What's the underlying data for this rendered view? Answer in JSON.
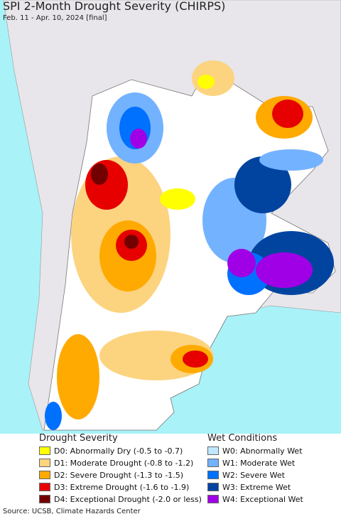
{
  "header": {
    "title": "SPI 2-Month Drought Severity (CHIRPS)",
    "subtitle": "Feb. 11 - Apr. 10, 2024 [final]"
  },
  "legend": {
    "drought": {
      "title": "Drought Severity",
      "items": [
        {
          "label": "D0: Abnormally Dry (-0.5 to -0.7)",
          "color": "#ffff00"
        },
        {
          "label": "D1: Moderate Drought (-0.8 to -1.2)",
          "color": "#fcd37f"
        },
        {
          "label": "D2: Severe Drought (-1.3 to -1.5)",
          "color": "#ffaa00"
        },
        {
          "label": "D3: Extreme Drought (-1.6 to -1.9)",
          "color": "#e60000"
        },
        {
          "label": "D4: Exceptional Drought (-2.0 or less)",
          "color": "#730000"
        }
      ]
    },
    "wet": {
      "title": "Wet Conditions",
      "items": [
        {
          "label": "W0: Abnormally Wet",
          "color": "#bee8ff"
        },
        {
          "label": "W1: Moderate Wet",
          "color": "#73b2ff"
        },
        {
          "label": "W2: Severe Wet",
          "color": "#0070ff"
        },
        {
          "label": "W3: Extreme Wet",
          "color": "#0044a0"
        },
        {
          "label": "W4: Exceptional Wet",
          "color": "#a000e6"
        }
      ]
    }
  },
  "footer": {
    "source": "Source: UCSB, Climate Hazards Center"
  }
}
